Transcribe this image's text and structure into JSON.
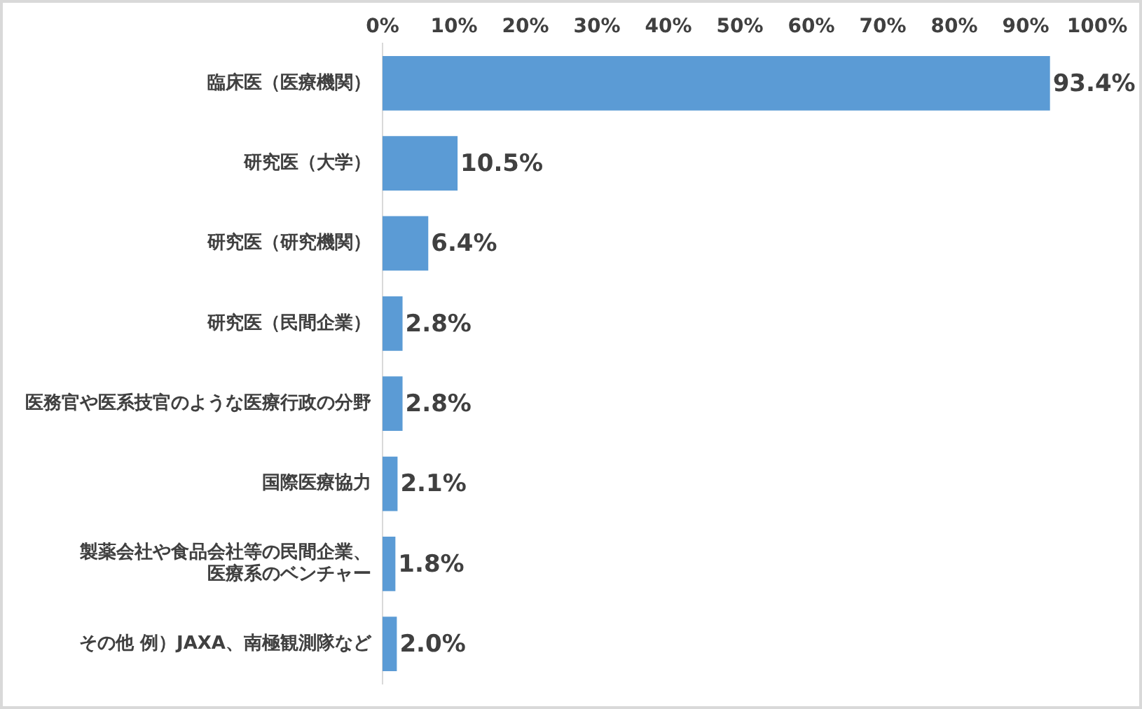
{
  "chart_data": {
    "type": "bar",
    "orientation": "horizontal",
    "categories": [
      "臨床医（医療機関）",
      "研究医（大学）",
      "研究医（研究機関）",
      "研究医（民間企業）",
      "医務官や医系技官のような医療行政の分野",
      "国際医療協力",
      "製薬会社や食品会社等の民間企業、医療系のベンチャー",
      "その他 例）JAXA、南極観測隊など"
    ],
    "values": [
      93.4,
      10.5,
      6.4,
      2.8,
      2.8,
      2.1,
      1.8,
      2.0
    ],
    "value_labels": [
      "93.4%",
      "10.5%",
      "6.4%",
      "2.8%",
      "2.8%",
      "2.1%",
      "1.8%",
      "2.0%"
    ],
    "color": "#5b9bd5",
    "xlim": [
      0,
      100
    ],
    "xticks": [
      {
        "value": 0,
        "label": "0%"
      },
      {
        "value": 10,
        "label": "10%"
      },
      {
        "value": 20,
        "label": "20%"
      },
      {
        "value": 30,
        "label": "30%"
      },
      {
        "value": 40,
        "label": "40%"
      },
      {
        "value": 50,
        "label": "50%"
      },
      {
        "value": 60,
        "label": "60%"
      },
      {
        "value": 70,
        "label": "70%"
      },
      {
        "value": 80,
        "label": "80%"
      },
      {
        "value": 90,
        "label": "90%"
      },
      {
        "value": 100,
        "label": "100%"
      }
    ],
    "grid": false,
    "legend": false
  }
}
